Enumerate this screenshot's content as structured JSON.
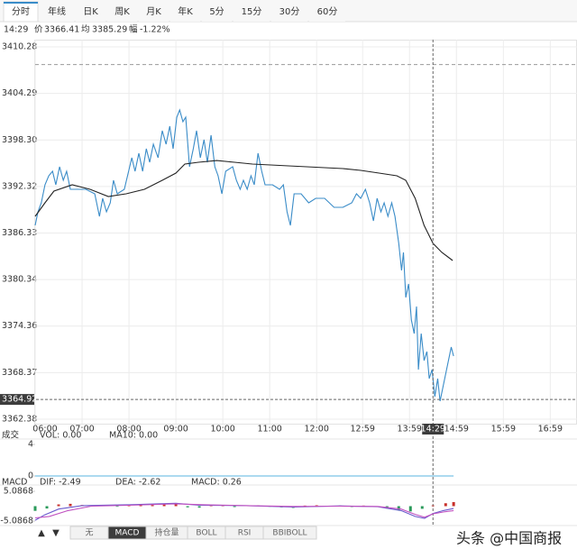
{
  "ui": {
    "tabs": [
      "分时",
      "年线",
      "日K",
      "周K",
      "月K",
      "年K",
      "5分",
      "15分",
      "30分",
      "60分"
    ],
    "selected_tab": 0,
    "info": {
      "time": "14:29",
      "price_label": "价",
      "price": 3366.41,
      "avg_label": "均",
      "avg": 3385.29,
      "change_label": "幅",
      "change": "-1.22%"
    },
    "arrows": [
      "▲",
      "▼"
    ],
    "indicator_tabs": [
      "无",
      "MACD",
      "持仓量",
      "BOLL",
      "RSI",
      "BBIBOLL"
    ],
    "selected_indicator": 1,
    "watermark": "头条 @中国商报"
  },
  "chart_data": [
    {
      "type": "line",
      "xlim": [
        6,
        17.55
      ],
      "ylim": [
        3362.38,
        3410.28
      ],
      "yticks": [
        3410.28,
        3404.29,
        {
          "value": 3398.3,
          "label": "3398.30"
        },
        3392.32,
        3386.33,
        3380.34,
        3374.36,
        3368.37,
        3362.38
      ],
      "xticks": [
        {
          "value": 6,
          "label": "06:00"
        },
        {
          "value": 7,
          "label": "07:00"
        },
        {
          "value": 8,
          "label": "08:00"
        },
        {
          "value": 9,
          "label": "09:00"
        },
        {
          "value": 10,
          "label": "10:00"
        },
        {
          "value": 11,
          "label": "11:00"
        },
        {
          "value": 12,
          "label": "12:00"
        },
        {
          "value": 12.98,
          "label": "12:59"
        },
        {
          "value": 13.98,
          "label": "13:59"
        },
        {
          "value": 14.98,
          "label": "14:59"
        },
        {
          "value": 15.98,
          "label": "15:59"
        },
        {
          "value": 16.98,
          "label": "16:59"
        }
      ],
      "grid": true,
      "reference_line": 3408,
      "up_color": "#d0302a",
      "down_color": "#2a9a3a",
      "cursor": {
        "x": {
          "value": 14.48,
          "label": "14:29"
        },
        "y": 3364.92
      },
      "series": [
        {
          "color": "#3a8cc8",
          "x": [
            6.0,
            6.06,
            6.13,
            6.21,
            6.29,
            6.37,
            6.44,
            6.52,
            6.6,
            6.67,
            6.75,
            6.9,
            7.08,
            7.27,
            7.37,
            7.44,
            7.52,
            7.6,
            7.67,
            7.75,
            7.9,
            8.06,
            8.13,
            8.21,
            8.29,
            8.37,
            8.44,
            8.52,
            8.62,
            8.71,
            8.79,
            8.87,
            8.94,
            9.02,
            9.08,
            9.15,
            9.21,
            9.29,
            9.37,
            9.44,
            9.52,
            9.6,
            9.67,
            9.75,
            9.83,
            9.9,
            9.98,
            10.06,
            10.21,
            10.29,
            10.37,
            10.44,
            10.52,
            10.6,
            10.67,
            10.75,
            10.83,
            10.9,
            11.06,
            11.21,
            11.29,
            11.37,
            11.44,
            11.52,
            11.67,
            11.83,
            11.98,
            12.17,
            12.37,
            12.56,
            12.75,
            12.85,
            12.94,
            13.04,
            13.13,
            13.21,
            13.29,
            13.37,
            13.44,
            13.52,
            13.6,
            13.67,
            13.75,
            13.81,
            13.85,
            13.9,
            13.96,
            14.02,
            14.08,
            14.13,
            14.17,
            14.23,
            14.29,
            14.35,
            14.4,
            14.46,
            14.52,
            14.58,
            14.63,
            14.69,
            14.75,
            14.81,
            14.87,
            14.92
          ],
          "values": [
            3387.32,
            3389.06,
            3390.22,
            3392.53,
            3393.69,
            3394.27,
            3392.53,
            3394.85,
            3393.11,
            3394.27,
            3391.96,
            3391.96,
            3391.96,
            3391.38,
            3388.48,
            3390.8,
            3389.06,
            3390.22,
            3393.11,
            3391.38,
            3391.96,
            3396.01,
            3394.27,
            3396.59,
            3394.27,
            3397.17,
            3395.43,
            3397.75,
            3396.01,
            3399.49,
            3397.75,
            3400.07,
            3397.17,
            3401.23,
            3402.16,
            3400.65,
            3401.23,
            3394.85,
            3397.17,
            3399.49,
            3396.01,
            3398.33,
            3395.43,
            3398.91,
            3394.85,
            3393.69,
            3391.38,
            3394.27,
            3394.85,
            3393.11,
            3391.96,
            3393.11,
            3391.96,
            3393.69,
            3392.53,
            3396.59,
            3394.27,
            3392.53,
            3392.53,
            3391.96,
            3392.53,
            3389.06,
            3387.32,
            3391.38,
            3391.38,
            3390.22,
            3390.8,
            3390.8,
            3389.64,
            3389.64,
            3390.22,
            3391.38,
            3390.8,
            3391.96,
            3390.22,
            3387.9,
            3390.8,
            3389.06,
            3390.22,
            3388.48,
            3390.22,
            3388.48,
            3385.0,
            3381.52,
            3383.84,
            3378.04,
            3379.78,
            3375.14,
            3373.4,
            3376.88,
            3368.76,
            3373.4,
            3369.92,
            3371.08,
            3367.6,
            3368.76,
            3365.28,
            3367.6,
            3364.7,
            3366.44,
            3368.18,
            3369.92,
            3371.66,
            3370.5
          ]
        },
        {
          "color": "#222222",
          "x": [
            6.0,
            6.21,
            6.4,
            6.79,
            7.17,
            7.56,
            7.94,
            8.33,
            8.71,
            9.0,
            9.19,
            9.48,
            9.87,
            10.25,
            10.63,
            11.02,
            11.4,
            11.79,
            12.17,
            12.56,
            12.94,
            13.33,
            13.71,
            13.9,
            14.1,
            14.29,
            14.48,
            14.67,
            14.9
          ],
          "values": [
            3388.48,
            3390.22,
            3391.72,
            3392.53,
            3391.96,
            3391.03,
            3391.38,
            3391.96,
            3393.11,
            3394.04,
            3395.2,
            3395.43,
            3395.66,
            3395.43,
            3395.2,
            3395.09,
            3394.97,
            3394.85,
            3394.74,
            3394.62,
            3394.39,
            3394.04,
            3393.69,
            3393.11,
            3390.8,
            3387.32,
            3385.0,
            3383.84,
            3382.79
          ]
        }
      ]
    },
    {
      "type": "line",
      "title": "成交",
      "xlim": [
        6,
        17.55
      ],
      "ylim": [
        0,
        4
      ],
      "yticks": [
        4,
        0
      ],
      "legend": [
        "VOL: 0.00",
        "MA10: 0.00"
      ],
      "legend_colors": [
        "#888888",
        "#2a9ac0"
      ],
      "series": [
        {
          "color": "#5ab4e0",
          "x": [
            6,
            14.92
          ],
          "values": [
            0,
            0
          ]
        }
      ]
    },
    {
      "type": "macd",
      "title": "MACD",
      "xlim": [
        6,
        17.55
      ],
      "ylim": [
        -5.0868,
        5.0868
      ],
      "yticks": [
        5.0868,
        -5.0868
      ],
      "legend": [
        "DIF: -2.49",
        "DEA: -2.62",
        "MACD: 0.26"
      ],
      "legend_colors": [
        "#4a5fd8",
        "#c040c0",
        "#c83030"
      ],
      "up_color": "#c8302a",
      "down_color": "#2a9a5a",
      "bars": {
        "x": [
          6.0,
          6.25,
          6.5,
          6.75,
          7.0,
          7.25,
          7.5,
          7.75,
          8.0,
          8.25,
          8.5,
          8.75,
          9.0,
          9.25,
          9.5,
          9.75,
          10.0,
          10.25,
          10.5,
          10.75,
          11.0,
          11.25,
          11.5,
          11.75,
          12.0,
          12.25,
          12.5,
          12.75,
          13.0,
          13.25,
          13.5,
          13.75,
          14.0,
          14.25,
          14.48,
          14.75,
          14.92
        ],
        "values": [
          -1.6,
          -0.8,
          0.6,
          0.8,
          0.4,
          0.3,
          0.2,
          -0.2,
          0.3,
          0.5,
          0.4,
          0.6,
          0.7,
          -0.4,
          -0.5,
          0.3,
          0.2,
          -0.3,
          0.2,
          0.3,
          -0.2,
          -0.4,
          -0.6,
          0.2,
          0.3,
          0.1,
          0.2,
          -0.3,
          0.2,
          -0.2,
          -0.8,
          -1.4,
          -1.8,
          -0.9,
          0.26,
          1.0,
          1.4
        ]
      },
      "series": [
        {
          "color": "#6a5acd",
          "x": [
            6.0,
            6.2,
            6.5,
            7.0,
            8.0,
            9.0,
            9.5,
            10.5,
            11.5,
            12.5,
            13.3,
            13.8,
            14.1,
            14.3,
            14.48,
            14.7,
            14.92
          ],
          "values": [
            -4.8,
            -3.0,
            -1.0,
            0.2,
            0.5,
            1.0,
            0.3,
            0.2,
            -0.3,
            0.1,
            -0.2,
            -1.5,
            -3.5,
            -4.2,
            -2.49,
            -1.5,
            -0.8
          ]
        },
        {
          "color": "#c050c0",
          "x": [
            6.0,
            6.3,
            6.7,
            7.2,
            8.0,
            9.0,
            9.6,
            10.5,
            11.5,
            12.5,
            13.3,
            13.8,
            14.1,
            14.3,
            14.48,
            14.7,
            14.92
          ],
          "values": [
            -4.0,
            -3.5,
            -1.5,
            0.0,
            0.3,
            0.8,
            0.5,
            0.2,
            -0.1,
            0.0,
            -0.1,
            -1.0,
            -2.8,
            -3.8,
            -2.62,
            -2.0,
            -1.5
          ]
        }
      ]
    }
  ]
}
